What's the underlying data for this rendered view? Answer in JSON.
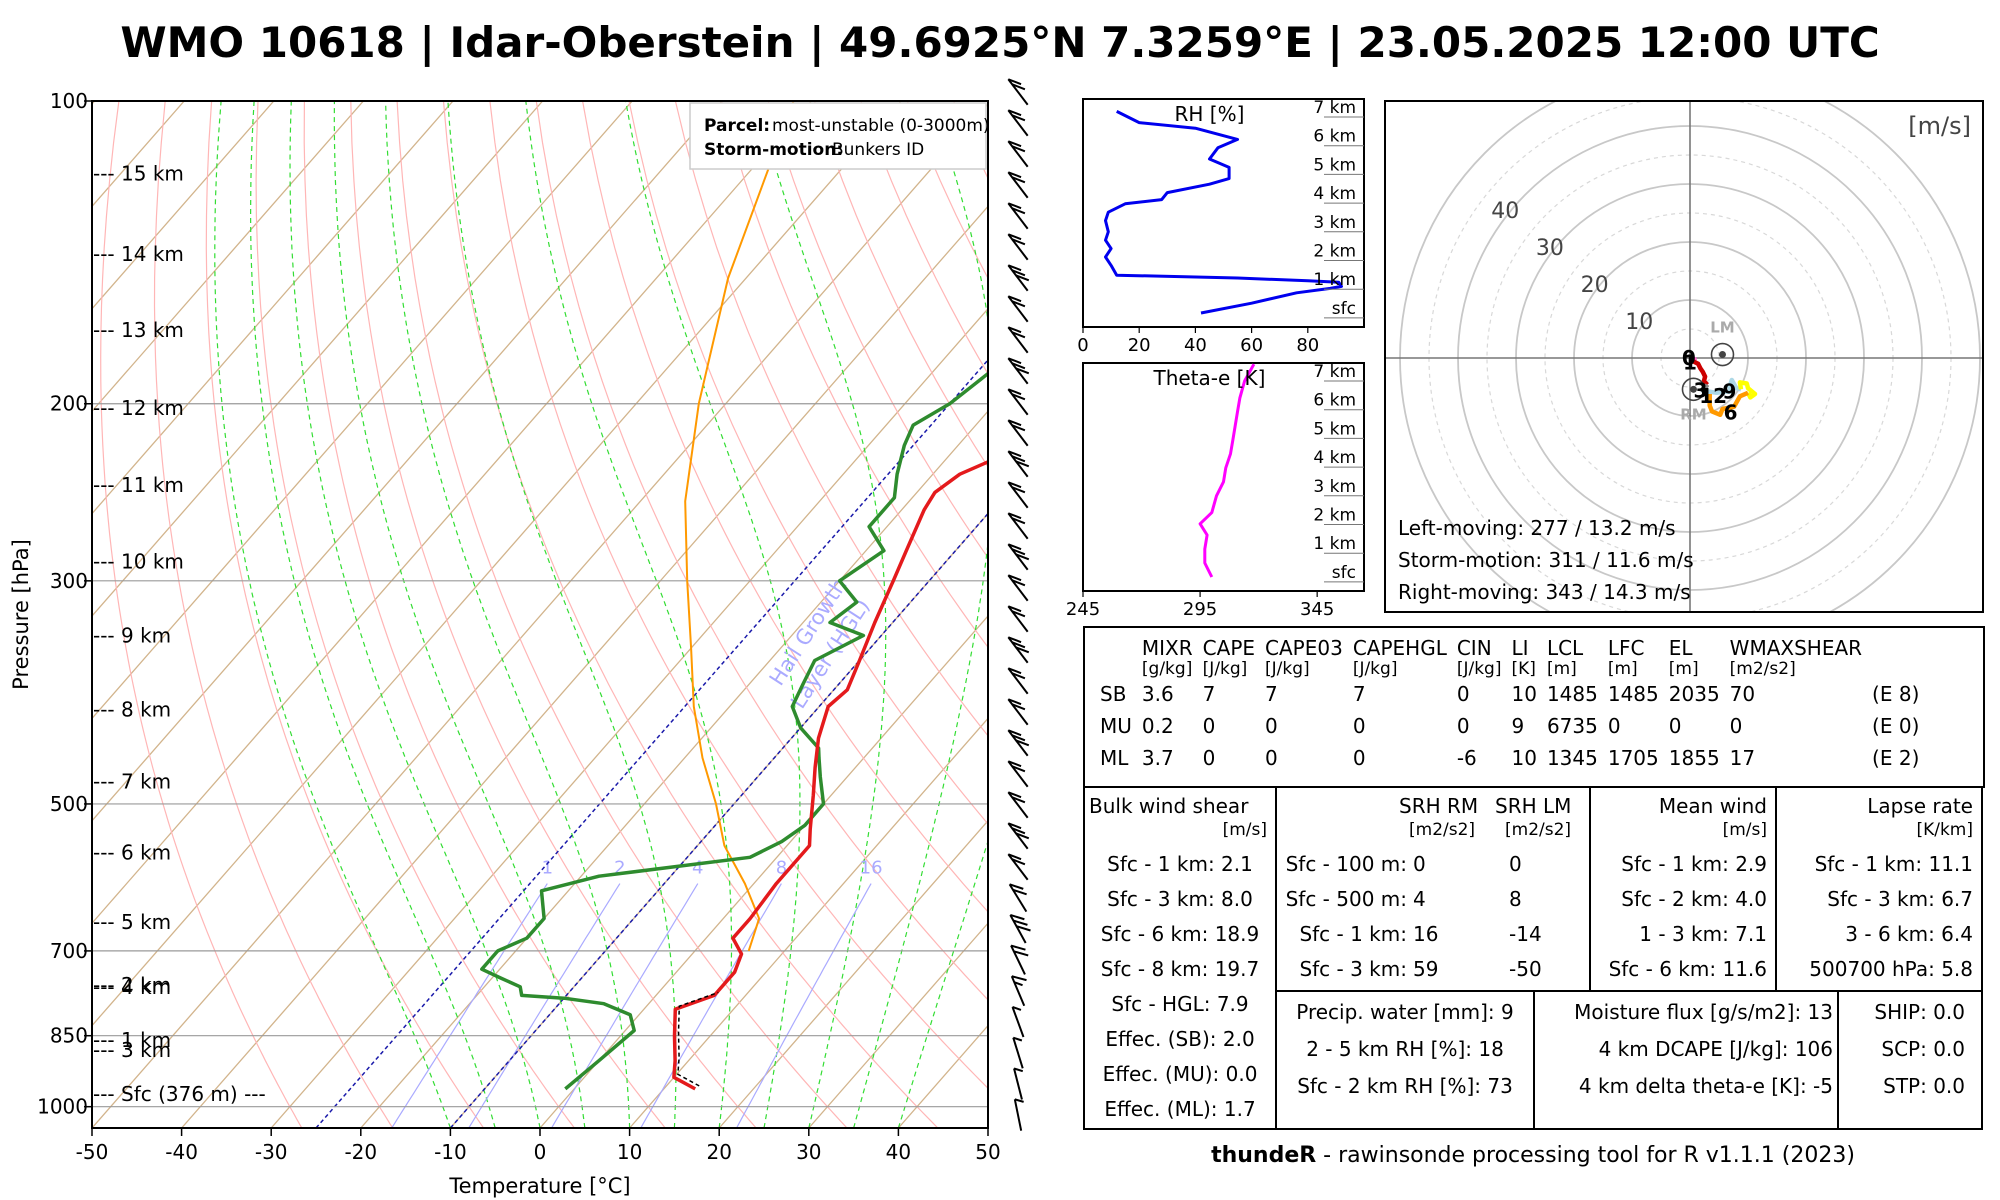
{
  "title": "WMO 10618 | Idar-Oberstein | 49.6925°N 7.3259°E | 23.05.2025 12:00 UTC",
  "footer": {
    "brand": "thundeR",
    "rest": " - rawinsonde processing tool for R v1.1.1 (2023)"
  },
  "colors": {
    "temperature": "#e41a1c",
    "dewpoint": "#2e8b2e",
    "parcel": "#ff9900",
    "isotherm": "#d2b48c",
    "dry_adiabat": "#ffb6b6",
    "moist_adiabat": "#33dd33",
    "hgl": "#1a1aaa",
    "mixing_ratio": "#aaaaff",
    "rh": "#0000ee",
    "theta_e": "#ff00ff"
  },
  "chart_data": [
    {
      "type": "line",
      "name": "skew-T",
      "xlabel": "Temperature [°C]",
      "ylabel": "Pressure [hPa]",
      "xlim": [
        -50,
        50
      ],
      "ylim": [
        1000,
        100
      ],
      "x_ticks": [
        "-50",
        "-40",
        "-30",
        "-20",
        "-10",
        "0",
        "10",
        "20",
        "30",
        "40",
        "50"
      ],
      "y_ticks": [
        "100",
        "200",
        "300",
        "500",
        "700",
        "850",
        "1000"
      ],
      "height_labels": [
        "--- 15 km",
        "--- 14 km",
        "--- 13 km",
        "--- 12 km",
        "--- 11 km",
        "--- 10 km",
        "--- 9 km",
        "--- 8 km",
        "--- 7 km",
        "--- 6 km",
        "--- 5 km",
        "--- 4 km",
        "--- 3 km",
        "--- 2 km",
        "--- 1 km",
        "--- Sfc (376 m) ---"
      ],
      "height_pressures": [
        118,
        142,
        169,
        202,
        241,
        287,
        340,
        403,
        475,
        559,
        655,
        760,
        878,
        1000,
        1060,
        1120
      ],
      "mixing_ratio_labels": [
        "1",
        "2",
        "4",
        "8",
        "16"
      ],
      "hgl_label": [
        "Hail Growth",
        "Layer (HGL)"
      ],
      "legend": {
        "parcel_key": "Parcel:",
        "parcel_val": "most-unstable (0-3000m)",
        "storm_key": "Storm-motion:",
        "storm_val": "Bunkers ID"
      },
      "series": [
        {
          "name": "temperature",
          "points": [
            [
              13.5,
              960
            ],
            [
              10,
              935
            ],
            [
              8.5,
              900
            ],
            [
              6,
              850
            ],
            [
              3.5,
              800
            ],
            [
              6.5,
              775
            ],
            [
              6.5,
              735
            ],
            [
              5.5,
              705
            ],
            [
              3,
              680
            ],
            [
              3,
              650
            ],
            [
              2.5,
              600
            ],
            [
              2.5,
              550
            ],
            [
              1,
              530
            ],
            [
              -2,
              490
            ],
            [
              -4.5,
              460
            ],
            [
              -7,
              430
            ],
            [
              -9,
              400
            ],
            [
              -8.5,
              385
            ],
            [
              -10,
              360
            ],
            [
              -12,
              330
            ],
            [
              -14,
              300
            ],
            [
              -15.5,
              280
            ],
            [
              -17.5,
              255
            ],
            [
              -18,
              245
            ],
            [
              -17,
              235
            ],
            [
              -14,
              225
            ],
            [
              -12,
              215
            ],
            [
              -10,
              205
            ],
            [
              -6.5,
              188
            ],
            [
              -4.5,
              178
            ],
            [
              -5,
              172
            ],
            [
              -4,
              168
            ],
            [
              -4.5,
              160
            ],
            [
              -4,
              152
            ],
            [
              -3.5,
              140
            ],
            [
              -4,
              130
            ],
            [
              -3,
              125
            ],
            [
              -2,
              118
            ],
            [
              -1,
              110
            ],
            [
              1,
              100
            ]
          ]
        },
        {
          "name": "dewpoint",
          "points": [
            [
              -1,
              960
            ],
            [
              0,
              900
            ],
            [
              1,
              840
            ],
            [
              -1,
              810
            ],
            [
              -5,
              790
            ],
            [
              -10,
              780
            ],
            [
              -15,
              775
            ],
            [
              -16,
              760
            ],
            [
              -19,
              745
            ],
            [
              -22,
              730
            ],
            [
              -22,
              700
            ],
            [
              -20,
              680
            ],
            [
              -20,
              650
            ],
            [
              -23,
              610
            ],
            [
              -18,
              590
            ],
            [
              -3,
              565
            ],
            [
              -1,
              545
            ],
            [
              0,
              525
            ],
            [
              0,
              500
            ],
            [
              -3,
              470
            ],
            [
              -5,
              450
            ],
            [
              -6,
              440
            ],
            [
              -10,
              420
            ],
            [
              -13,
              400
            ],
            [
              -14,
              380
            ],
            [
              -15,
              360
            ],
            [
              -12,
              340
            ],
            [
              -17,
              330
            ],
            [
              -16,
              315
            ],
            [
              -20,
              300
            ],
            [
              -18,
              280
            ],
            [
              -22,
              265
            ],
            [
              -22,
              248
            ],
            [
              -24,
              235
            ],
            [
              -26,
              220
            ],
            [
              -27,
              210
            ],
            [
              -25,
              200
            ],
            [
              -24,
              190
            ],
            [
              -23,
              180
            ],
            [
              -23,
              170
            ],
            [
              -22,
              160
            ],
            [
              -22,
              150
            ],
            [
              -21,
              140
            ],
            [
              -20,
              130
            ],
            [
              -18,
              120
            ],
            [
              -16,
              110
            ],
            [
              -14,
              100
            ]
          ]
        },
        {
          "name": "parcel",
          "points": [
            [
              6,
              700
            ],
            [
              4,
              650
            ],
            [
              -1,
              600
            ],
            [
              -7,
              550
            ],
            [
              -12,
              500
            ],
            [
              -18,
              450
            ],
            [
              -24,
              400
            ],
            [
              -30,
              350
            ],
            [
              -37,
              300
            ],
            [
              -45,
              250
            ],
            [
              -53,
              200
            ],
            [
              -62,
              150
            ],
            [
              -72,
              100
            ]
          ]
        }
      ]
    },
    {
      "type": "line",
      "name": "rh-profile",
      "xlabel": "RH [%]",
      "xlim": [
        0,
        100
      ],
      "x_ticks": [
        "0",
        "20",
        "40",
        "60",
        "80"
      ],
      "y_ticks": [
        "7 km",
        "6 km",
        "5 km",
        "4 km",
        "3 km",
        "2 km",
        "1 km",
        "sfc"
      ],
      "series": [
        {
          "name": "RH",
          "points": [
            [
              42,
              0
            ],
            [
              60,
              0.35
            ],
            [
              76,
              0.72
            ],
            [
              88,
              0.88
            ],
            [
              92,
              0.95
            ],
            [
              91,
              1.1
            ],
            [
              80,
              1.15
            ],
            [
              55,
              1.25
            ],
            [
              12,
              1.35
            ],
            [
              10,
              1.7
            ],
            [
              8,
              2.0
            ],
            [
              10,
              2.3
            ],
            [
              8,
              2.6
            ],
            [
              9,
              2.9
            ],
            [
              8,
              3.3
            ],
            [
              9,
              3.6
            ],
            [
              15,
              3.9
            ],
            [
              28,
              4.05
            ],
            [
              30,
              4.3
            ],
            [
              45,
              4.6
            ],
            [
              52,
              4.8
            ],
            [
              52,
              5.2
            ],
            [
              45,
              5.5
            ],
            [
              48,
              5.9
            ],
            [
              55,
              6.2
            ],
            [
              40,
              6.6
            ],
            [
              20,
              6.8
            ],
            [
              12,
              7.2
            ]
          ]
        }
      ]
    },
    {
      "type": "line",
      "name": "theta-e-profile",
      "xlabel": "Theta-e [K]",
      "xlim": [
        245,
        365
      ],
      "x_ticks": [
        "245",
        "295",
        "345"
      ],
      "y_ticks": [
        "7 km",
        "6 km",
        "5 km",
        "4 km",
        "3 km",
        "2 km",
        "1 km",
        "sfc"
      ],
      "series": [
        {
          "name": "theta-e",
          "points": [
            [
              300,
              0
            ],
            [
              297,
              0.5
            ],
            [
              297,
              1.0
            ],
            [
              298,
              1.5
            ],
            [
              295,
              1.9
            ],
            [
              300,
              2.3
            ],
            [
              302,
              2.9
            ],
            [
              305,
              3.4
            ],
            [
              306,
              3.9
            ],
            [
              308,
              4.4
            ],
            [
              309,
              4.9
            ],
            [
              310,
              5.4
            ],
            [
              311,
              5.9
            ],
            [
              312,
              6.4
            ],
            [
              314,
              7.0
            ],
            [
              318,
              7.6
            ]
          ]
        }
      ]
    },
    {
      "type": "line",
      "name": "hodograph",
      "unit_label": "[m/s]",
      "ring_labels": [
        "10",
        "20",
        "30",
        "40"
      ],
      "lm_label": "LM",
      "rm_label": "RM",
      "lm": [
        2.8,
        0.3
      ],
      "rm": [
        0.3,
        -2.7
      ],
      "height_labels": [
        {
          "t": "0",
          "p": [
            -0.1,
            0.1
          ]
        },
        {
          "t": "1",
          "p": [
            0.0,
            -0.3
          ]
        },
        {
          "t": "3",
          "p": [
            0.9,
            -2.7
          ]
        },
        {
          "t": "12",
          "p": [
            2.0,
            -3.2
          ]
        },
        {
          "t": "9",
          "p": [
            3.4,
            -2.8
          ]
        },
        {
          "t": "6",
          "p": [
            3.5,
            -4.6
          ]
        }
      ],
      "segments": [
        {
          "color": "#ff66cc",
          "points": [
            [
              0.2,
              0.0
            ],
            [
              0.4,
              -0.1
            ],
            [
              0.3,
              -0.3
            ]
          ]
        },
        {
          "color": "#cc0000",
          "points": [
            [
              0.3,
              -0.3
            ],
            [
              0.7,
              -0.5
            ],
            [
              0.9,
              -0.9
            ],
            [
              1.1,
              -1.2
            ],
            [
              1.3,
              -1.6
            ],
            [
              1.2,
              -2.0
            ],
            [
              1.5,
              -2.3
            ]
          ]
        },
        {
          "color": "#888888",
          "points": [
            [
              1.5,
              -2.3
            ],
            [
              1.3,
              -2.6
            ],
            [
              1.0,
              -2.8
            ]
          ]
        },
        {
          "color": "#add8e6",
          "points": [
            [
              1.0,
              -2.8
            ],
            [
              2.3,
              -3.0
            ],
            [
              3.0,
              -2.9
            ],
            [
              3.7,
              -2.9
            ],
            [
              3.4,
              -2.5
            ],
            [
              3.6,
              -1.9
            ],
            [
              4.0,
              -2.6
            ],
            [
              4.4,
              -2.7
            ]
          ]
        },
        {
          "color": "#ffff00",
          "points": [
            [
              4.4,
              -2.7
            ],
            [
              4.3,
              -2.1
            ],
            [
              4.9,
              -2.2
            ],
            [
              5.0,
              -2.6
            ],
            [
              5.6,
              -3.1
            ],
            [
              5.2,
              -3.4
            ],
            [
              5.0,
              -3.0
            ]
          ]
        },
        {
          "color": "#ff9900",
          "points": [
            [
              5.0,
              -3.0
            ],
            [
              4.3,
              -3.3
            ],
            [
              3.8,
              -4.2
            ],
            [
              2.8,
              -4.4
            ],
            [
              2.6,
              -4.9
            ],
            [
              1.9,
              -4.6
            ],
            [
              1.7,
              -4.1
            ],
            [
              1.7,
              -3.1
            ]
          ]
        }
      ],
      "info": [
        "Left-moving: 277 / 13.2 m/s",
        "Storm-motion: 311 / 11.6 m/s",
        "Right-moving: 343 / 14.3 m/s"
      ]
    }
  ],
  "indices": {
    "headers": [
      "",
      "MIXR",
      "CAPE",
      "CAPE03",
      "CAPEHGL",
      "CIN",
      "LI",
      "LCL",
      "LFC",
      "EL",
      "WMAXSHEAR",
      ""
    ],
    "units": [
      "",
      "[g/kg]",
      "[J/kg]",
      "[J/kg]",
      "[J/kg]",
      "[J/kg]",
      "[K]",
      "[m]",
      "[m]",
      "[m]",
      "[m2/s2]",
      ""
    ],
    "rows": [
      [
        "SB",
        "3.6",
        "7",
        "7",
        "7",
        "0",
        "10",
        "1485",
        "1485",
        "2035",
        "70",
        "(E 8)"
      ],
      [
        "MU",
        "0.2",
        "0",
        "0",
        "0",
        "0",
        "9",
        "6735",
        "0",
        "0",
        "0",
        "(E 0)"
      ],
      [
        "ML",
        "3.7",
        "0",
        "0",
        "0",
        "-6",
        "10",
        "1345",
        "1705",
        "1855",
        "17",
        "(E 2)"
      ]
    ]
  },
  "shear": {
    "title": "Bulk wind shear",
    "unit": "[m/s]",
    "rows": [
      "Sfc - 1 km: 2.1",
      "Sfc - 3 km: 8.0",
      "Sfc - 6 km: 18.9",
      "Sfc - 8 km: 19.7",
      "Sfc - HGL: 7.9",
      "Effec. (SB): 2.0",
      "Effec. (MU): 0.0",
      "Effec. (ML): 1.7"
    ]
  },
  "srh": {
    "h1": "SRH RM",
    "h2": "SRH LM",
    "u1": "[m2/s2]",
    "u2": "[m2/s2]",
    "rows": [
      [
        "Sfc - 100 m:",
        "0",
        "0"
      ],
      [
        "Sfc - 500 m:",
        "4",
        "8"
      ],
      [
        "Sfc - 1 km:",
        "16",
        "-14"
      ],
      [
        "Sfc - 3 km:",
        "59",
        "-50"
      ]
    ]
  },
  "mean_wind": {
    "title": "Mean wind",
    "unit": "[m/s]",
    "rows": [
      "Sfc - 1 km: 2.9",
      "Sfc - 2 km: 4.0",
      "1 - 3 km: 7.1",
      "Sfc - 6 km: 11.6"
    ]
  },
  "lapse": {
    "title": "Lapse rate",
    "unit": "[K/km]",
    "rows": [
      "Sfc - 1 km: 11.1",
      "Sfc - 3 km: 6.7",
      "3 - 6 km: 6.4",
      "500700 hPa: 5.8"
    ]
  },
  "moisture": {
    "rows": [
      "Precip. water [mm]: 9",
      "2 - 5 km RH [%]: 18",
      "Sfc - 2 km RH [%]: 73"
    ]
  },
  "flux": {
    "rows": [
      "Moisture flux [g/s/m2]: 13",
      "4 km DCAPE [J/kg]: 106",
      "4 km delta theta-e [K]: -5"
    ]
  },
  "composite": {
    "rows": [
      "SHIP: 0.0",
      "SCP: 0.0",
      "STP: 0.0"
    ]
  }
}
